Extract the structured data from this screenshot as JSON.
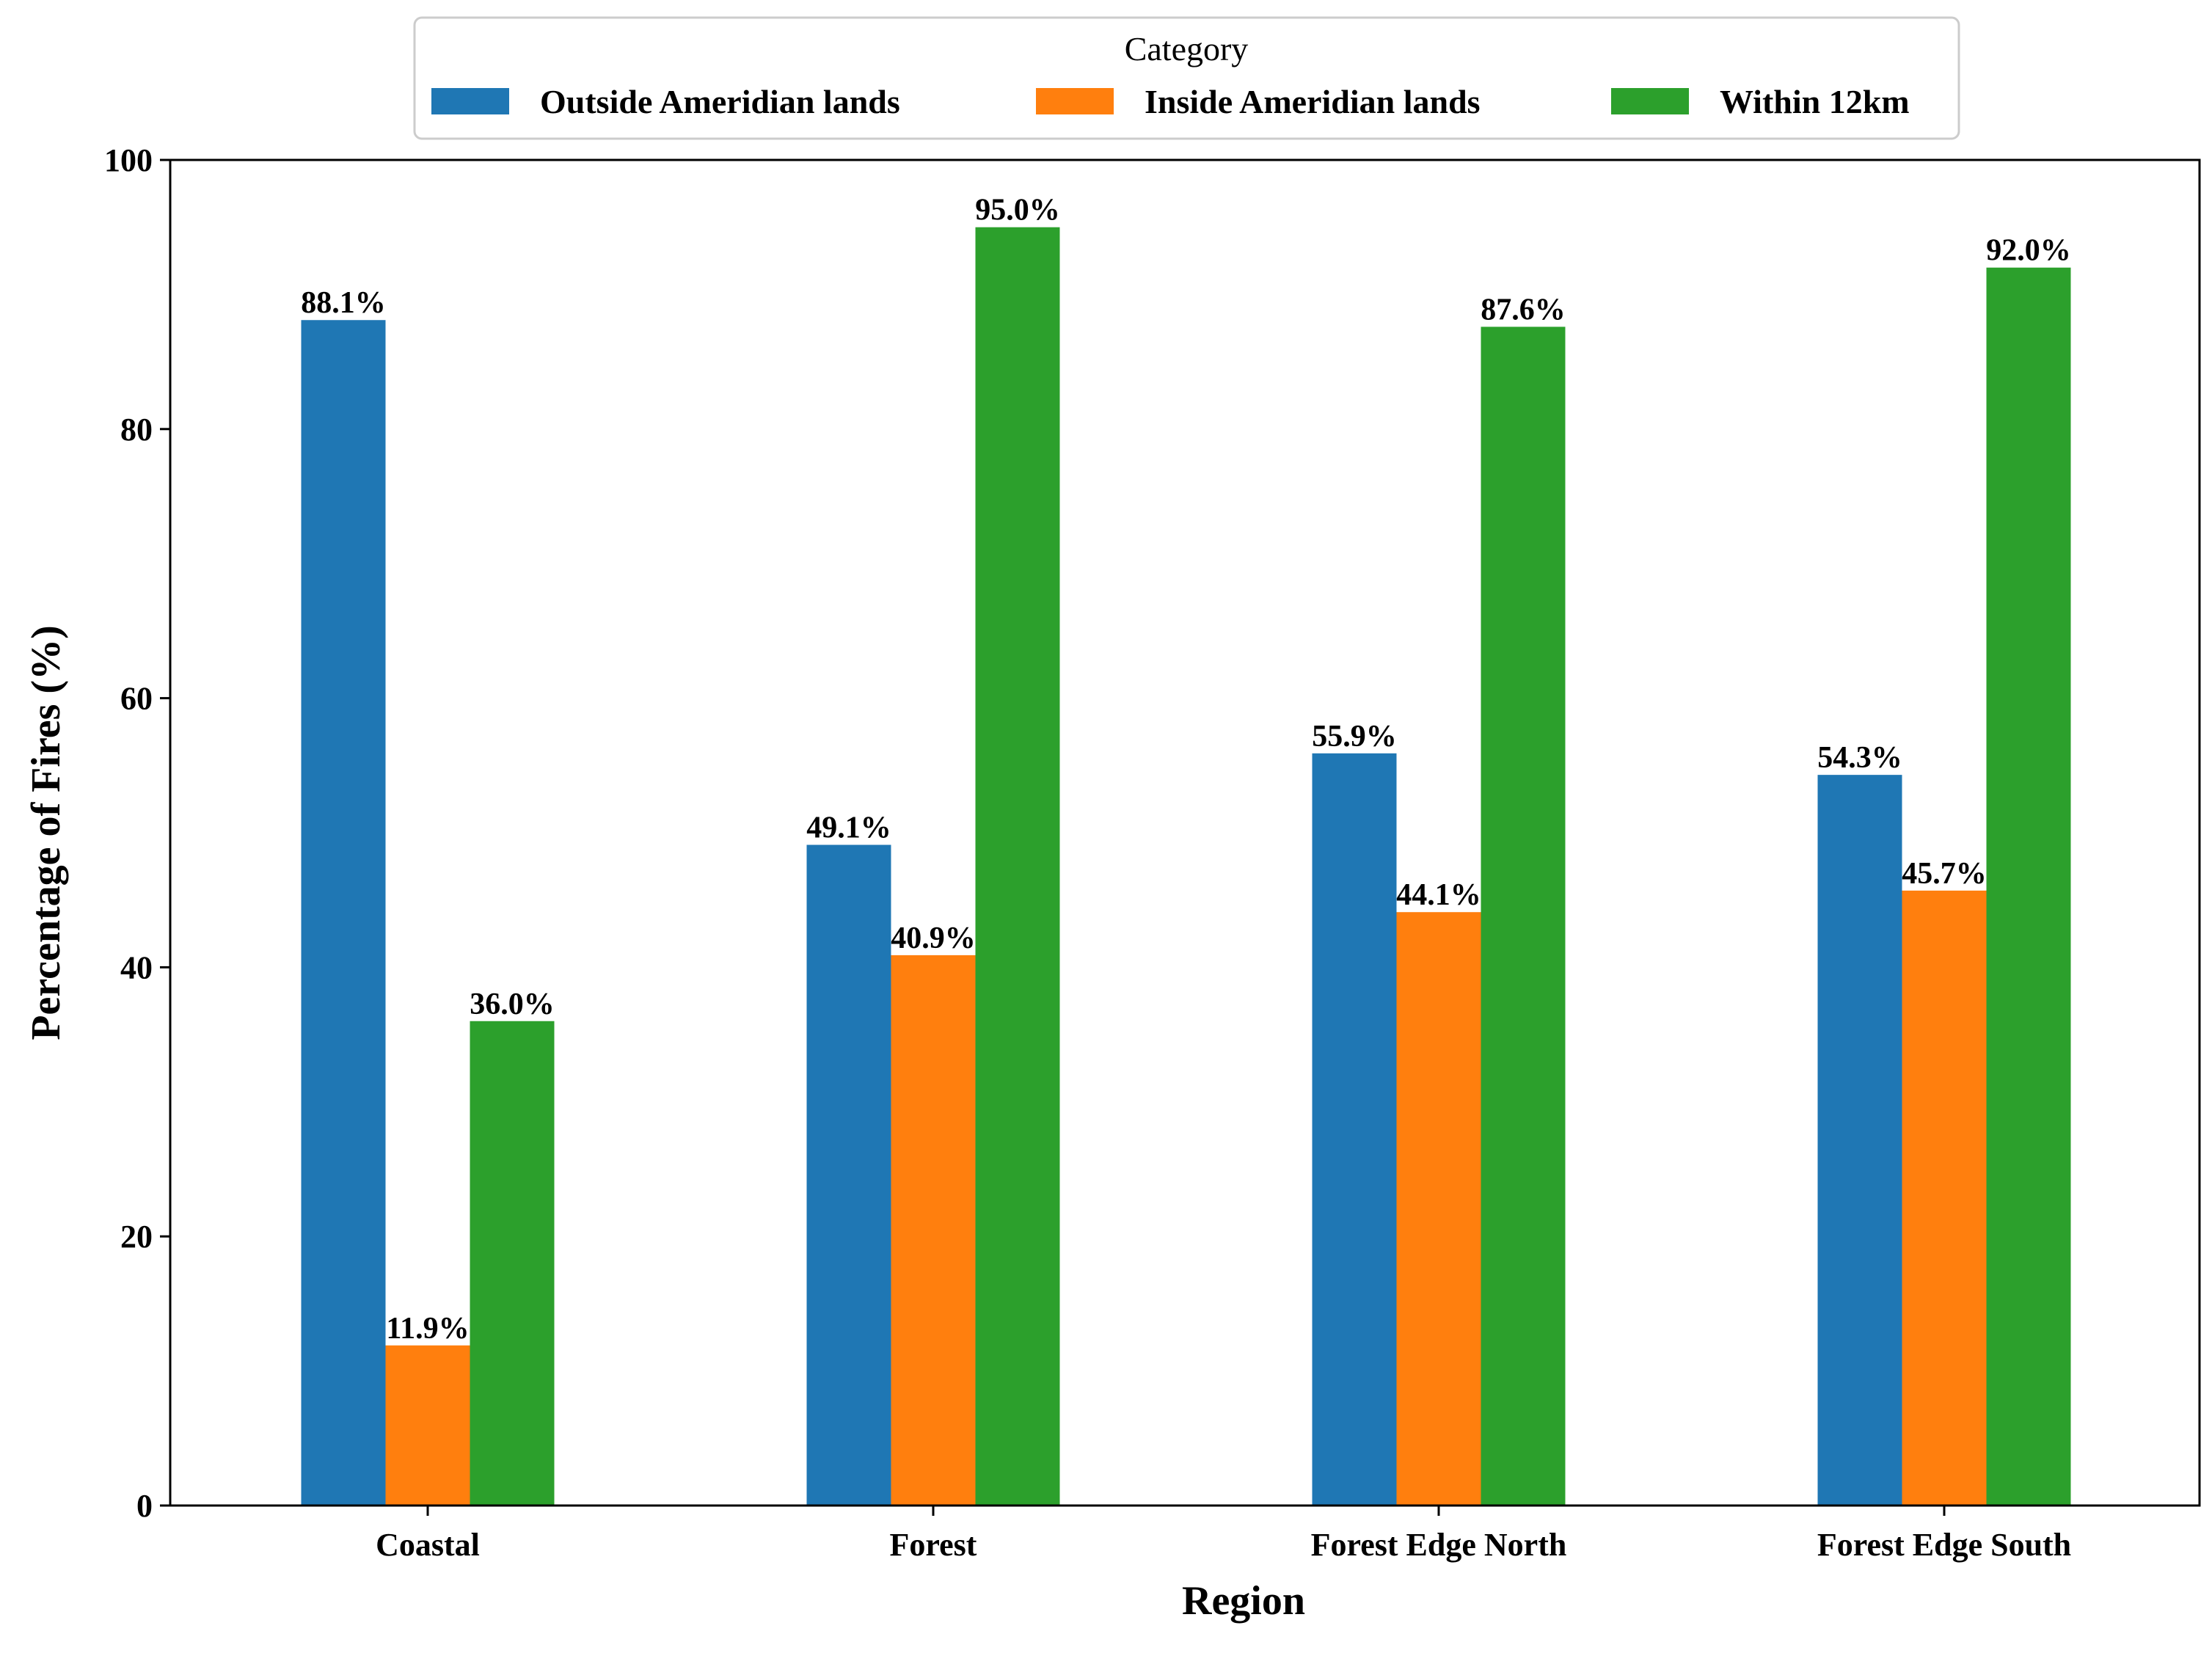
{
  "chart_data": {
    "type": "bar",
    "title": "",
    "xlabel": "Region",
    "ylabel": "Percentage of Fires (%)",
    "ylim": [
      0,
      100
    ],
    "yticks": [
      "0",
      "20",
      "40",
      "60",
      "80",
      "100"
    ],
    "grid": false,
    "legend": {
      "title": "Category",
      "placement": "top-center"
    },
    "categories": [
      "Coastal",
      "Forest",
      "Forest Edge North",
      "Forest Edge South"
    ],
    "series": [
      {
        "name": "Outside Ameridian lands",
        "color": "#1f77b4",
        "values": [
          88.1,
          49.1,
          55.9,
          54.3
        ],
        "labels": [
          "88.1%",
          "49.1%",
          "55.9%",
          "54.3%"
        ]
      },
      {
        "name": "Inside Ameridian lands",
        "color": "#ff7f0e",
        "values": [
          11.9,
          40.9,
          44.1,
          45.7
        ],
        "labels": [
          "11.9%",
          "40.9%",
          "44.1%",
          "45.7%"
        ]
      },
      {
        "name": "Within 12km",
        "color": "#2ca02c",
        "values": [
          36.0,
          95.0,
          87.6,
          92.0
        ],
        "labels": [
          "36.0%",
          "95.0%",
          "87.6%",
          "92.0%"
        ]
      }
    ]
  }
}
